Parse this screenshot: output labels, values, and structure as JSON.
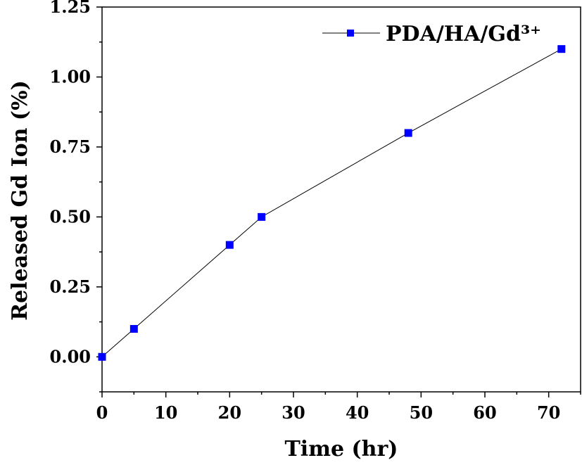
{
  "chart_data": {
    "type": "line",
    "title": "",
    "xlabel": "Time (hr)",
    "ylabel": "Released Gd Ion (%)",
    "xlim": [
      0,
      75
    ],
    "ylim": [
      -0.125,
      1.25
    ],
    "x_ticks": [
      0,
      10,
      20,
      30,
      40,
      50,
      60,
      70
    ],
    "x_tick_labels": [
      "0",
      "10",
      "20",
      "30",
      "40",
      "50",
      "60",
      "70"
    ],
    "y_ticks": [
      0,
      0.25,
      0.5,
      0.75,
      1.0,
      1.25
    ],
    "y_tick_labels": [
      "0.00",
      "0.25",
      "0.50",
      "0.75",
      "1.00",
      "1.25"
    ],
    "grid": false,
    "legend_position": "top-right",
    "series": [
      {
        "name": "PDA/HA/Gd³⁺",
        "marker": "square",
        "line_color": "#000000",
        "marker_color": "#0000ff",
        "x": [
          0,
          5,
          20,
          25,
          48,
          72
        ],
        "y": [
          0,
          0.1,
          0.4,
          0.5,
          0.8,
          1.1
        ]
      }
    ]
  }
}
